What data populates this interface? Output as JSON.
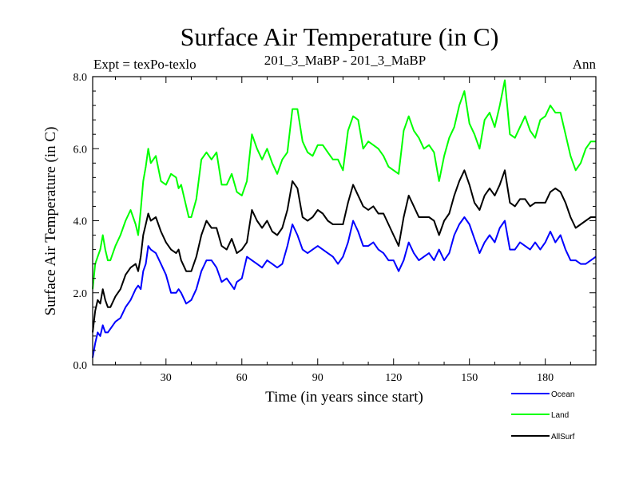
{
  "chart_data": {
    "type": "line",
    "title": "Surface Air Temperature (in C)",
    "subtitle_left": "Expt = texPo-texlo",
    "subtitle_center": "201_3_MaBP - 201_3_MaBP",
    "subtitle_right": "Ann",
    "xlabel": "Time (in years since start)",
    "ylabel": "Surface Air Temperature (in C)",
    "xlim": [
      1,
      200
    ],
    "ylim": [
      0,
      8
    ],
    "x_ticks": [
      30,
      60,
      90,
      120,
      150,
      180
    ],
    "x_tick_labels": [
      "30",
      "60",
      "90",
      "120",
      "150",
      "180"
    ],
    "y_ticks": [
      0,
      2,
      4,
      6,
      8
    ],
    "y_tick_labels": [
      "0.0",
      "2.0",
      "4.0",
      "6.0",
      "8.0"
    ],
    "grid": false,
    "legend_position": "bottom-right",
    "series": [
      {
        "name": "Ocean",
        "color": "#0000ff",
        "points": [
          [
            1,
            0.2
          ],
          [
            2,
            0.6
          ],
          [
            3,
            0.9
          ],
          [
            4,
            0.8
          ],
          [
            5,
            1.1
          ],
          [
            6,
            0.9
          ],
          [
            7,
            0.9
          ],
          [
            8,
            1.0
          ],
          [
            10,
            1.2
          ],
          [
            12,
            1.3
          ],
          [
            14,
            1.6
          ],
          [
            16,
            1.8
          ],
          [
            18,
            2.1
          ],
          [
            19,
            2.2
          ],
          [
            20,
            2.1
          ],
          [
            21,
            2.6
          ],
          [
            22,
            2.8
          ],
          [
            23,
            3.3
          ],
          [
            24,
            3.2
          ],
          [
            26,
            3.1
          ],
          [
            28,
            2.8
          ],
          [
            30,
            2.5
          ],
          [
            32,
            2.0
          ],
          [
            34,
            2.0
          ],
          [
            35,
            2.1
          ],
          [
            36,
            2.0
          ],
          [
            38,
            1.7
          ],
          [
            40,
            1.8
          ],
          [
            42,
            2.1
          ],
          [
            44,
            2.6
          ],
          [
            46,
            2.9
          ],
          [
            48,
            2.9
          ],
          [
            50,
            2.7
          ],
          [
            52,
            2.3
          ],
          [
            54,
            2.4
          ],
          [
            56,
            2.2
          ],
          [
            57,
            2.1
          ],
          [
            58,
            2.3
          ],
          [
            60,
            2.4
          ],
          [
            62,
            3.0
          ],
          [
            64,
            2.9
          ],
          [
            66,
            2.8
          ],
          [
            68,
            2.7
          ],
          [
            70,
            2.9
          ],
          [
            72,
            2.8
          ],
          [
            74,
            2.7
          ],
          [
            76,
            2.8
          ],
          [
            78,
            3.3
          ],
          [
            80,
            3.9
          ],
          [
            82,
            3.6
          ],
          [
            84,
            3.2
          ],
          [
            86,
            3.1
          ],
          [
            88,
            3.2
          ],
          [
            90,
            3.3
          ],
          [
            92,
            3.2
          ],
          [
            94,
            3.1
          ],
          [
            96,
            3.0
          ],
          [
            98,
            2.8
          ],
          [
            100,
            3.0
          ],
          [
            102,
            3.4
          ],
          [
            104,
            4.0
          ],
          [
            106,
            3.7
          ],
          [
            108,
            3.3
          ],
          [
            110,
            3.3
          ],
          [
            112,
            3.4
          ],
          [
            114,
            3.2
          ],
          [
            116,
            3.1
          ],
          [
            118,
            2.9
          ],
          [
            120,
            2.9
          ],
          [
            122,
            2.6
          ],
          [
            124,
            2.9
          ],
          [
            126,
            3.4
          ],
          [
            128,
            3.1
          ],
          [
            130,
            2.9
          ],
          [
            132,
            3.0
          ],
          [
            134,
            3.1
          ],
          [
            136,
            2.9
          ],
          [
            138,
            3.2
          ],
          [
            140,
            2.9
          ],
          [
            142,
            3.1
          ],
          [
            144,
            3.6
          ],
          [
            146,
            3.9
          ],
          [
            148,
            4.1
          ],
          [
            150,
            3.9
          ],
          [
            152,
            3.5
          ],
          [
            154,
            3.1
          ],
          [
            156,
            3.4
          ],
          [
            158,
            3.6
          ],
          [
            160,
            3.4
          ],
          [
            162,
            3.8
          ],
          [
            164,
            4.0
          ],
          [
            166,
            3.2
          ],
          [
            168,
            3.2
          ],
          [
            170,
            3.4
          ],
          [
            172,
            3.3
          ],
          [
            174,
            3.2
          ],
          [
            176,
            3.4
          ],
          [
            178,
            3.2
          ],
          [
            180,
            3.4
          ],
          [
            182,
            3.7
          ],
          [
            184,
            3.4
          ],
          [
            186,
            3.6
          ],
          [
            188,
            3.2
          ],
          [
            190,
            2.9
          ],
          [
            192,
            2.9
          ],
          [
            194,
            2.8
          ],
          [
            196,
            2.8
          ],
          [
            198,
            2.9
          ],
          [
            200,
            3.0
          ]
        ]
      },
      {
        "name": "Land",
        "color": "#00ff00",
        "points": [
          [
            1,
            2.1
          ],
          [
            2,
            2.8
          ],
          [
            3,
            3.0
          ],
          [
            4,
            3.2
          ],
          [
            5,
            3.6
          ],
          [
            6,
            3.2
          ],
          [
            7,
            2.9
          ],
          [
            8,
            2.9
          ],
          [
            10,
            3.3
          ],
          [
            12,
            3.6
          ],
          [
            14,
            4.0
          ],
          [
            16,
            4.3
          ],
          [
            18,
            3.9
          ],
          [
            19,
            3.6
          ],
          [
            20,
            4.3
          ],
          [
            21,
            5.1
          ],
          [
            22,
            5.5
          ],
          [
            23,
            6.0
          ],
          [
            24,
            5.6
          ],
          [
            26,
            5.8
          ],
          [
            28,
            5.1
          ],
          [
            30,
            5.0
          ],
          [
            32,
            5.3
          ],
          [
            34,
            5.2
          ],
          [
            35,
            4.9
          ],
          [
            36,
            5.0
          ],
          [
            38,
            4.4
          ],
          [
            39,
            4.1
          ],
          [
            40,
            4.1
          ],
          [
            42,
            4.6
          ],
          [
            44,
            5.7
          ],
          [
            46,
            5.9
          ],
          [
            48,
            5.7
          ],
          [
            50,
            5.9
          ],
          [
            52,
            5.0
          ],
          [
            54,
            5.0
          ],
          [
            56,
            5.3
          ],
          [
            58,
            4.8
          ],
          [
            60,
            4.7
          ],
          [
            62,
            5.1
          ],
          [
            64,
            6.4
          ],
          [
            66,
            6.0
          ],
          [
            68,
            5.7
          ],
          [
            70,
            6.0
          ],
          [
            72,
            5.6
          ],
          [
            74,
            5.3
          ],
          [
            76,
            5.7
          ],
          [
            78,
            5.9
          ],
          [
            80,
            7.1
          ],
          [
            82,
            7.1
          ],
          [
            84,
            6.2
          ],
          [
            86,
            5.9
          ],
          [
            88,
            5.8
          ],
          [
            90,
            6.1
          ],
          [
            92,
            6.1
          ],
          [
            94,
            5.9
          ],
          [
            96,
            5.7
          ],
          [
            98,
            5.7
          ],
          [
            100,
            5.4
          ],
          [
            102,
            6.5
          ],
          [
            104,
            6.9
          ],
          [
            106,
            6.8
          ],
          [
            108,
            6.0
          ],
          [
            110,
            6.2
          ],
          [
            112,
            6.1
          ],
          [
            114,
            6.0
          ],
          [
            116,
            5.8
          ],
          [
            118,
            5.5
          ],
          [
            120,
            5.4
          ],
          [
            122,
            5.3
          ],
          [
            124,
            6.5
          ],
          [
            126,
            6.9
          ],
          [
            128,
            6.5
          ],
          [
            130,
            6.3
          ],
          [
            132,
            6.0
          ],
          [
            134,
            6.1
          ],
          [
            136,
            5.9
          ],
          [
            138,
            5.1
          ],
          [
            140,
            5.8
          ],
          [
            142,
            6.3
          ],
          [
            144,
            6.6
          ],
          [
            146,
            7.2
          ],
          [
            148,
            7.6
          ],
          [
            150,
            6.7
          ],
          [
            152,
            6.4
          ],
          [
            154,
            6.0
          ],
          [
            156,
            6.8
          ],
          [
            158,
            7.0
          ],
          [
            160,
            6.6
          ],
          [
            162,
            7.2
          ],
          [
            164,
            7.9
          ],
          [
            166,
            6.4
          ],
          [
            168,
            6.3
          ],
          [
            170,
            6.6
          ],
          [
            172,
            6.9
          ],
          [
            174,
            6.5
          ],
          [
            176,
            6.3
          ],
          [
            178,
            6.8
          ],
          [
            180,
            6.9
          ],
          [
            182,
            7.2
          ],
          [
            184,
            7.0
          ],
          [
            186,
            7.0
          ],
          [
            188,
            6.4
          ],
          [
            190,
            5.8
          ],
          [
            192,
            5.4
          ],
          [
            194,
            5.6
          ],
          [
            196,
            6.0
          ],
          [
            198,
            6.2
          ],
          [
            200,
            6.2
          ]
        ]
      },
      {
        "name": "AllSurf",
        "color": "#000000",
        "points": [
          [
            1,
            0.9
          ],
          [
            2,
            1.5
          ],
          [
            3,
            1.8
          ],
          [
            4,
            1.7
          ],
          [
            5,
            2.1
          ],
          [
            6,
            1.8
          ],
          [
            7,
            1.6
          ],
          [
            8,
            1.6
          ],
          [
            10,
            1.9
          ],
          [
            12,
            2.1
          ],
          [
            14,
            2.5
          ],
          [
            16,
            2.7
          ],
          [
            18,
            2.8
          ],
          [
            19,
            2.6
          ],
          [
            20,
            3.0
          ],
          [
            21,
            3.6
          ],
          [
            22,
            3.9
          ],
          [
            23,
            4.2
          ],
          [
            24,
            4.0
          ],
          [
            26,
            4.1
          ],
          [
            28,
            3.7
          ],
          [
            30,
            3.4
          ],
          [
            32,
            3.2
          ],
          [
            34,
            3.1
          ],
          [
            35,
            3.2
          ],
          [
            36,
            2.9
          ],
          [
            38,
            2.6
          ],
          [
            40,
            2.6
          ],
          [
            42,
            3.0
          ],
          [
            44,
            3.6
          ],
          [
            46,
            4.0
          ],
          [
            48,
            3.8
          ],
          [
            50,
            3.8
          ],
          [
            52,
            3.3
          ],
          [
            54,
            3.2
          ],
          [
            56,
            3.5
          ],
          [
            58,
            3.1
          ],
          [
            60,
            3.2
          ],
          [
            62,
            3.4
          ],
          [
            64,
            4.3
          ],
          [
            66,
            4.0
          ],
          [
            68,
            3.8
          ],
          [
            70,
            4.0
          ],
          [
            72,
            3.7
          ],
          [
            74,
            3.6
          ],
          [
            76,
            3.8
          ],
          [
            78,
            4.3
          ],
          [
            80,
            5.1
          ],
          [
            82,
            4.9
          ],
          [
            84,
            4.1
          ],
          [
            86,
            4.0
          ],
          [
            88,
            4.1
          ],
          [
            90,
            4.3
          ],
          [
            92,
            4.2
          ],
          [
            94,
            4.0
          ],
          [
            96,
            3.9
          ],
          [
            98,
            3.9
          ],
          [
            100,
            3.9
          ],
          [
            102,
            4.5
          ],
          [
            104,
            5.0
          ],
          [
            106,
            4.7
          ],
          [
            108,
            4.4
          ],
          [
            110,
            4.3
          ],
          [
            112,
            4.4
          ],
          [
            114,
            4.2
          ],
          [
            116,
            4.2
          ],
          [
            118,
            3.9
          ],
          [
            120,
            3.6
          ],
          [
            122,
            3.3
          ],
          [
            124,
            4.1
          ],
          [
            126,
            4.7
          ],
          [
            128,
            4.4
          ],
          [
            130,
            4.1
          ],
          [
            132,
            4.1
          ],
          [
            134,
            4.1
          ],
          [
            136,
            4.0
          ],
          [
            138,
            3.6
          ],
          [
            140,
            4.0
          ],
          [
            142,
            4.2
          ],
          [
            144,
            4.7
          ],
          [
            146,
            5.1
          ],
          [
            148,
            5.4
          ],
          [
            150,
            5.0
          ],
          [
            152,
            4.5
          ],
          [
            154,
            4.3
          ],
          [
            156,
            4.7
          ],
          [
            158,
            4.9
          ],
          [
            160,
            4.7
          ],
          [
            162,
            5.0
          ],
          [
            164,
            5.4
          ],
          [
            166,
            4.5
          ],
          [
            168,
            4.4
          ],
          [
            170,
            4.6
          ],
          [
            172,
            4.6
          ],
          [
            174,
            4.4
          ],
          [
            176,
            4.5
          ],
          [
            178,
            4.5
          ],
          [
            180,
            4.5
          ],
          [
            182,
            4.8
          ],
          [
            184,
            4.9
          ],
          [
            186,
            4.8
          ],
          [
            188,
            4.5
          ],
          [
            190,
            4.1
          ],
          [
            192,
            3.8
          ],
          [
            194,
            3.9
          ],
          [
            196,
            4.0
          ],
          [
            198,
            4.1
          ],
          [
            200,
            4.1
          ]
        ]
      }
    ]
  }
}
